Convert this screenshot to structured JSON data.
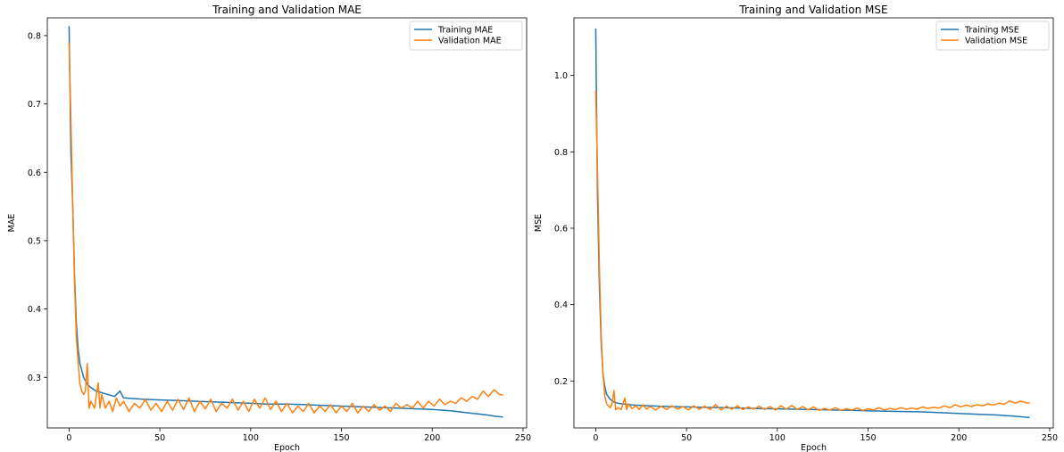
{
  "chart_data": [
    {
      "type": "line",
      "title": "Training and Validation MAE",
      "xlabel": "Epoch",
      "ylabel": "MAE",
      "xlim": [
        -12,
        252
      ],
      "ylim": [
        0.226,
        0.826
      ],
      "xticks": [
        0,
        50,
        100,
        150,
        200,
        250
      ],
      "yticks": [
        0.3,
        0.4,
        0.5,
        0.6,
        0.7,
        0.8
      ],
      "legend": "top-right",
      "grid": false,
      "series": [
        {
          "name": "Training MAE",
          "color": "#1f77b4",
          "x": [
            0,
            1,
            2,
            3,
            4,
            5,
            6,
            8,
            10,
            12,
            15,
            20,
            25,
            28,
            30,
            40,
            50,
            60,
            70,
            80,
            90,
            100,
            110,
            120,
            130,
            140,
            150,
            160,
            170,
            180,
            190,
            200,
            210,
            220,
            230,
            235,
            239
          ],
          "y": [
            0.814,
            0.63,
            0.55,
            0.45,
            0.38,
            0.34,
            0.32,
            0.3,
            0.29,
            0.285,
            0.28,
            0.276,
            0.272,
            0.28,
            0.27,
            0.268,
            0.267,
            0.266,
            0.265,
            0.264,
            0.263,
            0.262,
            0.261,
            0.261,
            0.26,
            0.259,
            0.258,
            0.257,
            0.256,
            0.255,
            0.254,
            0.253,
            0.251,
            0.248,
            0.245,
            0.243,
            0.242
          ]
        },
        {
          "name": "Validation MAE",
          "color": "#ff7f0e",
          "x": [
            0,
            1,
            2,
            3,
            4,
            5,
            6,
            7,
            8,
            9,
            10,
            11,
            12,
            14,
            16,
            17,
            18,
            20,
            22,
            24,
            26,
            28,
            30,
            33,
            36,
            39,
            42,
            45,
            48,
            51,
            54,
            57,
            60,
            63,
            66,
            69,
            72,
            75,
            78,
            81,
            84,
            87,
            90,
            93,
            96,
            99,
            102,
            105,
            108,
            111,
            114,
            117,
            120,
            123,
            126,
            129,
            132,
            135,
            138,
            141,
            144,
            147,
            150,
            153,
            156,
            159,
            162,
            165,
            168,
            171,
            174,
            177,
            180,
            183,
            186,
            189,
            192,
            195,
            198,
            201,
            204,
            207,
            210,
            213,
            216,
            219,
            222,
            225,
            228,
            231,
            234,
            237,
            239
          ],
          "y": [
            0.79,
            0.68,
            0.55,
            0.44,
            0.36,
            0.32,
            0.29,
            0.28,
            0.275,
            0.28,
            0.32,
            0.255,
            0.265,
            0.255,
            0.292,
            0.255,
            0.275,
            0.255,
            0.265,
            0.25,
            0.27,
            0.258,
            0.265,
            0.25,
            0.262,
            0.255,
            0.268,
            0.252,
            0.262,
            0.25,
            0.265,
            0.252,
            0.268,
            0.253,
            0.27,
            0.25,
            0.265,
            0.254,
            0.268,
            0.25,
            0.262,
            0.255,
            0.268,
            0.252,
            0.265,
            0.25,
            0.268,
            0.255,
            0.27,
            0.253,
            0.265,
            0.25,
            0.262,
            0.248,
            0.258,
            0.25,
            0.262,
            0.248,
            0.258,
            0.25,
            0.26,
            0.248,
            0.258,
            0.25,
            0.262,
            0.248,
            0.258,
            0.25,
            0.26,
            0.252,
            0.258,
            0.25,
            0.262,
            0.255,
            0.26,
            0.255,
            0.265,
            0.255,
            0.265,
            0.258,
            0.268,
            0.26,
            0.265,
            0.262,
            0.27,
            0.265,
            0.272,
            0.268,
            0.28,
            0.272,
            0.282,
            0.275,
            0.274
          ]
        }
      ]
    },
    {
      "type": "line",
      "title": "Training and Validation MSE",
      "xlabel": "Epoch",
      "ylabel": "MSE",
      "xlim": [
        -12,
        252
      ],
      "ylim": [
        0.077,
        1.151
      ],
      "xticks": [
        0,
        50,
        100,
        150,
        200,
        250
      ],
      "yticks": [
        0.2,
        0.4,
        0.6,
        0.8,
        1.0
      ],
      "legend": "top-right",
      "grid": false,
      "series": [
        {
          "name": "Training MSE",
          "color": "#1f77b4",
          "x": [
            0,
            1,
            2,
            3,
            4,
            5,
            6,
            8,
            10,
            12,
            15,
            20,
            30,
            40,
            50,
            60,
            70,
            80,
            90,
            100,
            110,
            120,
            130,
            140,
            150,
            160,
            170,
            180,
            190,
            200,
            210,
            220,
            230,
            235,
            239
          ],
          "y": [
            1.123,
            0.68,
            0.45,
            0.3,
            0.22,
            0.185,
            0.165,
            0.152,
            0.145,
            0.142,
            0.14,
            0.137,
            0.135,
            0.133,
            0.132,
            0.131,
            0.13,
            0.129,
            0.128,
            0.127,
            0.126,
            0.125,
            0.124,
            0.123,
            0.122,
            0.121,
            0.12,
            0.119,
            0.117,
            0.115,
            0.113,
            0.111,
            0.108,
            0.106,
            0.104
          ]
        },
        {
          "name": "Validation MSE",
          "color": "#ff7f0e",
          "x": [
            0,
            1,
            2,
            3,
            4,
            5,
            6,
            7,
            8,
            9,
            10,
            11,
            12,
            14,
            16,
            17,
            18,
            20,
            22,
            24,
            26,
            28,
            30,
            33,
            36,
            39,
            42,
            45,
            48,
            51,
            54,
            57,
            60,
            63,
            66,
            69,
            72,
            75,
            78,
            81,
            84,
            87,
            90,
            93,
            96,
            99,
            102,
            105,
            108,
            111,
            114,
            117,
            120,
            123,
            126,
            129,
            132,
            135,
            138,
            141,
            144,
            147,
            150,
            153,
            156,
            159,
            162,
            165,
            168,
            171,
            174,
            177,
            180,
            183,
            186,
            189,
            192,
            195,
            198,
            201,
            204,
            207,
            210,
            213,
            216,
            219,
            222,
            225,
            228,
            231,
            234,
            237,
            239
          ],
          "y": [
            0.96,
            0.75,
            0.5,
            0.32,
            0.22,
            0.16,
            0.14,
            0.135,
            0.13,
            0.14,
            0.175,
            0.125,
            0.13,
            0.125,
            0.155,
            0.125,
            0.14,
            0.128,
            0.135,
            0.125,
            0.138,
            0.126,
            0.133,
            0.124,
            0.134,
            0.125,
            0.135,
            0.126,
            0.133,
            0.124,
            0.135,
            0.126,
            0.134,
            0.125,
            0.138,
            0.124,
            0.134,
            0.126,
            0.135,
            0.125,
            0.132,
            0.126,
            0.134,
            0.125,
            0.133,
            0.124,
            0.135,
            0.126,
            0.136,
            0.125,
            0.133,
            0.124,
            0.132,
            0.123,
            0.128,
            0.124,
            0.13,
            0.123,
            0.127,
            0.124,
            0.129,
            0.123,
            0.127,
            0.124,
            0.13,
            0.124,
            0.128,
            0.125,
            0.13,
            0.126,
            0.129,
            0.126,
            0.132,
            0.128,
            0.131,
            0.129,
            0.135,
            0.13,
            0.138,
            0.132,
            0.137,
            0.133,
            0.138,
            0.135,
            0.14,
            0.137,
            0.142,
            0.139,
            0.148,
            0.142,
            0.147,
            0.143,
            0.142
          ]
        }
      ]
    }
  ]
}
